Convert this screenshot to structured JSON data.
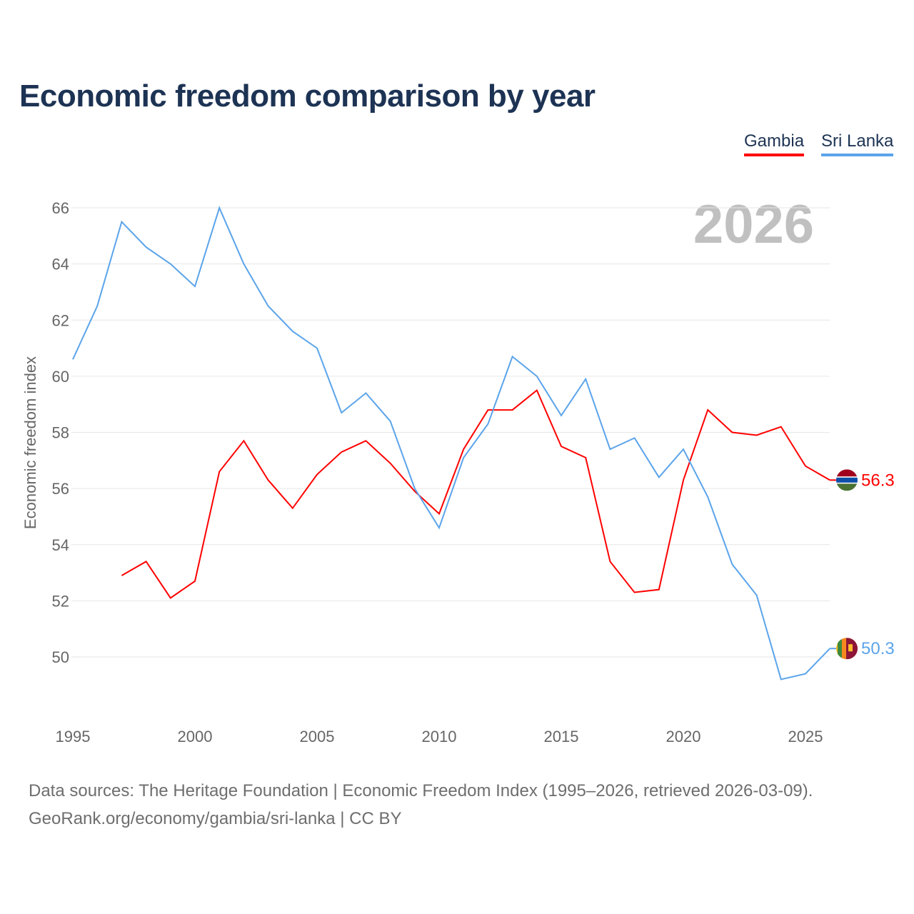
{
  "title": "Economic freedom comparison by year",
  "footer": {
    "line1": "Data sources: The Heritage Foundation | Economic Freedom Index (1995–2026, retrieved 2026-03-09).",
    "line2": "GeoRank.org/economy/gambia/sri-lanka | CC BY"
  },
  "chart_data": {
    "type": "line",
    "title": "Economic freedom comparison by year",
    "ylabel": "Economic freedom index",
    "xlabel": "",
    "year_watermark": "2026",
    "xlim": [
      1995,
      2026
    ],
    "ylim": [
      48,
      66.5
    ],
    "xticks": [
      "1995",
      "2000",
      "2005",
      "2010",
      "2015",
      "2020",
      "2025"
    ],
    "yticks": [
      "50",
      "52",
      "54",
      "56",
      "58",
      "60",
      "62",
      "64",
      "66"
    ],
    "grid": true,
    "legend": "top-right",
    "series": [
      {
        "name": "Gambia",
        "color": "#ff0000",
        "end_label": "56.3",
        "x": [
          1997,
          1998,
          1999,
          2000,
          2001,
          2002,
          2003,
          2004,
          2005,
          2006,
          2007,
          2008,
          2009,
          2010,
          2011,
          2012,
          2013,
          2014,
          2015,
          2016,
          2017,
          2018,
          2019,
          2020,
          2021,
          2022,
          2023,
          2024,
          2025,
          2026
        ],
        "values": [
          52.9,
          53.4,
          52.1,
          52.7,
          56.6,
          57.7,
          56.3,
          55.3,
          56.5,
          57.3,
          57.7,
          56.9,
          55.9,
          55.1,
          57.4,
          58.8,
          58.8,
          59.5,
          57.5,
          57.1,
          53.4,
          52.3,
          52.4,
          56.3,
          58.8,
          58.0,
          57.9,
          58.2,
          56.8,
          56.3
        ]
      },
      {
        "name": "Sri Lanka",
        "color": "#5ba4ea",
        "end_label": "50.3",
        "x": [
          1995,
          1996,
          1997,
          1998,
          1999,
          2000,
          2001,
          2002,
          2003,
          2004,
          2005,
          2006,
          2007,
          2008,
          2009,
          2010,
          2011,
          2012,
          2013,
          2014,
          2015,
          2016,
          2017,
          2018,
          2019,
          2020,
          2021,
          2022,
          2023,
          2024,
          2025,
          2026
        ],
        "values": [
          60.6,
          62.5,
          65.5,
          64.6,
          64.0,
          63.2,
          66.0,
          64.0,
          62.5,
          61.6,
          61.0,
          58.7,
          59.4,
          58.4,
          56.0,
          54.6,
          57.1,
          58.3,
          60.7,
          60.0,
          58.6,
          59.9,
          57.4,
          57.8,
          56.4,
          57.4,
          55.7,
          53.3,
          52.2,
          49.2,
          49.4,
          50.3
        ]
      }
    ]
  }
}
